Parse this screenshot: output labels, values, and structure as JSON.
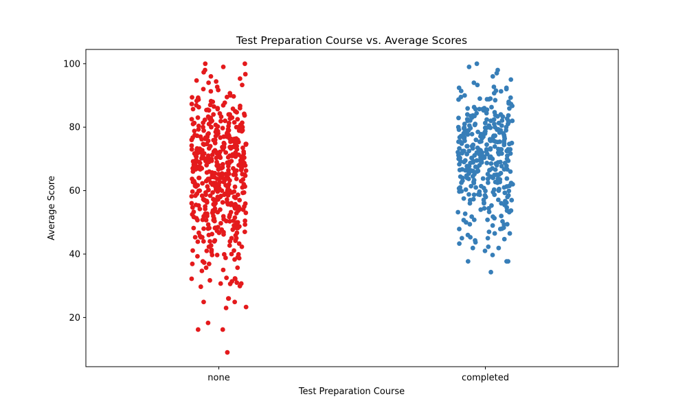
{
  "chart_data": {
    "type": "scatter",
    "subtype": "strip",
    "title": "Test Preparation Course vs. Average Scores",
    "xlabel": "Test Preparation Course",
    "ylabel": "Average Score",
    "categories": [
      "none",
      "completed"
    ],
    "ylim": [
      4.5,
      104.5
    ],
    "yticks": [
      20,
      40,
      60,
      80,
      100
    ],
    "grid": false,
    "legend": "none",
    "colors": {
      "none": "#e41a1c",
      "completed": "#377eb8"
    },
    "series": [
      {
        "category": "none",
        "values": [
          9.0,
          18.3,
          23.0,
          23.3,
          26.0,
          26.0,
          29.7,
          29.9,
          30.6,
          31.0,
          31.4,
          31.7,
          32.3,
          34.7,
          35.0,
          37.3,
          37.7,
          38.3,
          38.7,
          39.0,
          39.3,
          39.7,
          40.0,
          40.7,
          41.0,
          41.3,
          42.3,
          43.3,
          44.0,
          44.3,
          45.0,
          45.3,
          45.7,
          46.0,
          46.3,
          46.7,
          47.0,
          47.3,
          47.7,
          48.0,
          48.3,
          48.7,
          49.0,
          49.3,
          49.7,
          50.0,
          50.3,
          50.7,
          51.0,
          51.3,
          51.7,
          52.0,
          52.3,
          52.7,
          53.0,
          53.3,
          53.7,
          54.0,
          54.3,
          54.7,
          55.0,
          55.3,
          55.7,
          56.0,
          56.3,
          56.7,
          57.0,
          57.3,
          57.7,
          58.0,
          58.3,
          58.7,
          59.0,
          59.3,
          59.7,
          60.0,
          60.3,
          60.7,
          61.0,
          61.3,
          61.7,
          62.0,
          62.3,
          62.7,
          63.0,
          63.3,
          63.7,
          64.0,
          64.3,
          64.7,
          65.0,
          65.3,
          65.7,
          66.0,
          66.3,
          66.7,
          67.0,
          67.3,
          67.7,
          68.0,
          68.3,
          68.7,
          69.0,
          69.3,
          69.7,
          70.0,
          70.3,
          70.7,
          71.0,
          71.3,
          71.7,
          72.0,
          72.3,
          72.7,
          73.0,
          73.3,
          73.7,
          74.0,
          74.3,
          74.7,
          75.0,
          75.3,
          75.7,
          76.0,
          76.3,
          76.7,
          77.0,
          77.3,
          77.7,
          78.0,
          78.3,
          78.7,
          79.0,
          79.3,
          79.7,
          80.0,
          80.3,
          80.7,
          81.0,
          81.3,
          81.7,
          82.0,
          82.3,
          82.7,
          83.0,
          83.3,
          83.7,
          84.0,
          84.3,
          84.7,
          85.0,
          85.3,
          85.7,
          86.0,
          86.3,
          86.7,
          87.0,
          87.3,
          87.7,
          88.0,
          88.3,
          88.7,
          89.0,
          89.3,
          89.7,
          90.0,
          90.7,
          91.3,
          92.0,
          92.7,
          93.3,
          94.0,
          94.7,
          95.3,
          96.0,
          96.7,
          97.3,
          98.0,
          99.0,
          100.0,
          100.0,
          45.0,
          48.0,
          50.0,
          52.0,
          54.0,
          56.0,
          58.0,
          60.0,
          62.0,
          63.0,
          64.0,
          65.0,
          66.0,
          67.0,
          68.0,
          69.0,
          70.0,
          71.0,
          72.0,
          73.0,
          74.0,
          75.0,
          76.0,
          77.0,
          78.0,
          79.0,
          80.0,
          82.0,
          84.0,
          86.0,
          50.7,
          53.3,
          55.7,
          57.3,
          59.3,
          61.3,
          62.7,
          64.3,
          65.7,
          67.3,
          68.7,
          70.3,
          71.7,
          73.3,
          74.7,
          76.3,
          77.7,
          79.3,
          80.7,
          83.3,
          55.0,
          58.7,
          61.7,
          64.7,
          67.7,
          70.7,
          73.7,
          76.7,
          60.0,
          63.3,
          66.3,
          69.3,
          72.3,
          64.0,
          68.0,
          71.0
        ],
        "count_shown": 520
      },
      {
        "category": "completed",
        "values": [
          34.3,
          37.7,
          39.7,
          41.0,
          42.3,
          43.3,
          43.7,
          44.3,
          44.7,
          45.3,
          46.0,
          47.0,
          48.0,
          48.3,
          49.0,
          49.3,
          50.0,
          50.3,
          50.7,
          51.3,
          52.0,
          52.7,
          53.3,
          54.0,
          54.7,
          55.3,
          56.0,
          56.7,
          57.3,
          58.0,
          58.7,
          59.3,
          60.0,
          60.7,
          61.3,
          62.0,
          62.7,
          63.3,
          64.0,
          64.7,
          65.3,
          66.0,
          66.7,
          67.3,
          68.0,
          68.7,
          69.3,
          70.0,
          70.7,
          71.3,
          72.0,
          72.7,
          73.3,
          74.0,
          74.7,
          75.3,
          76.0,
          76.7,
          77.3,
          78.0,
          78.7,
          79.3,
          80.0,
          80.7,
          81.3,
          82.0,
          82.7,
          83.3,
          84.0,
          84.7,
          85.3,
          86.0,
          86.7,
          87.3,
          88.0,
          88.7,
          89.3,
          90.0,
          90.7,
          91.3,
          92.0,
          92.7,
          93.3,
          94.0,
          95.0,
          96.0,
          97.0,
          98.0,
          99.0,
          100.0,
          65.0,
          66.0,
          67.0,
          68.0,
          69.0,
          70.0,
          71.0,
          72.0,
          73.0,
          74.0,
          75.0,
          76.0,
          77.0,
          78.0,
          79.0,
          80.0,
          81.0,
          82.0,
          83.0,
          84.0,
          60.5,
          62.5,
          64.5,
          66.5,
          68.5,
          70.5,
          72.5,
          74.5,
          76.5,
          78.5,
          80.5,
          85.5,
          87.5,
          89.5,
          91.5,
          55.5,
          57.5,
          59.5,
          61.5,
          63.5,
          65.5,
          67.5,
          69.5,
          71.5,
          73.5,
          75.5,
          77.5,
          79.5,
          81.5,
          83.5
        ],
        "count_shown": 360
      }
    ]
  }
}
